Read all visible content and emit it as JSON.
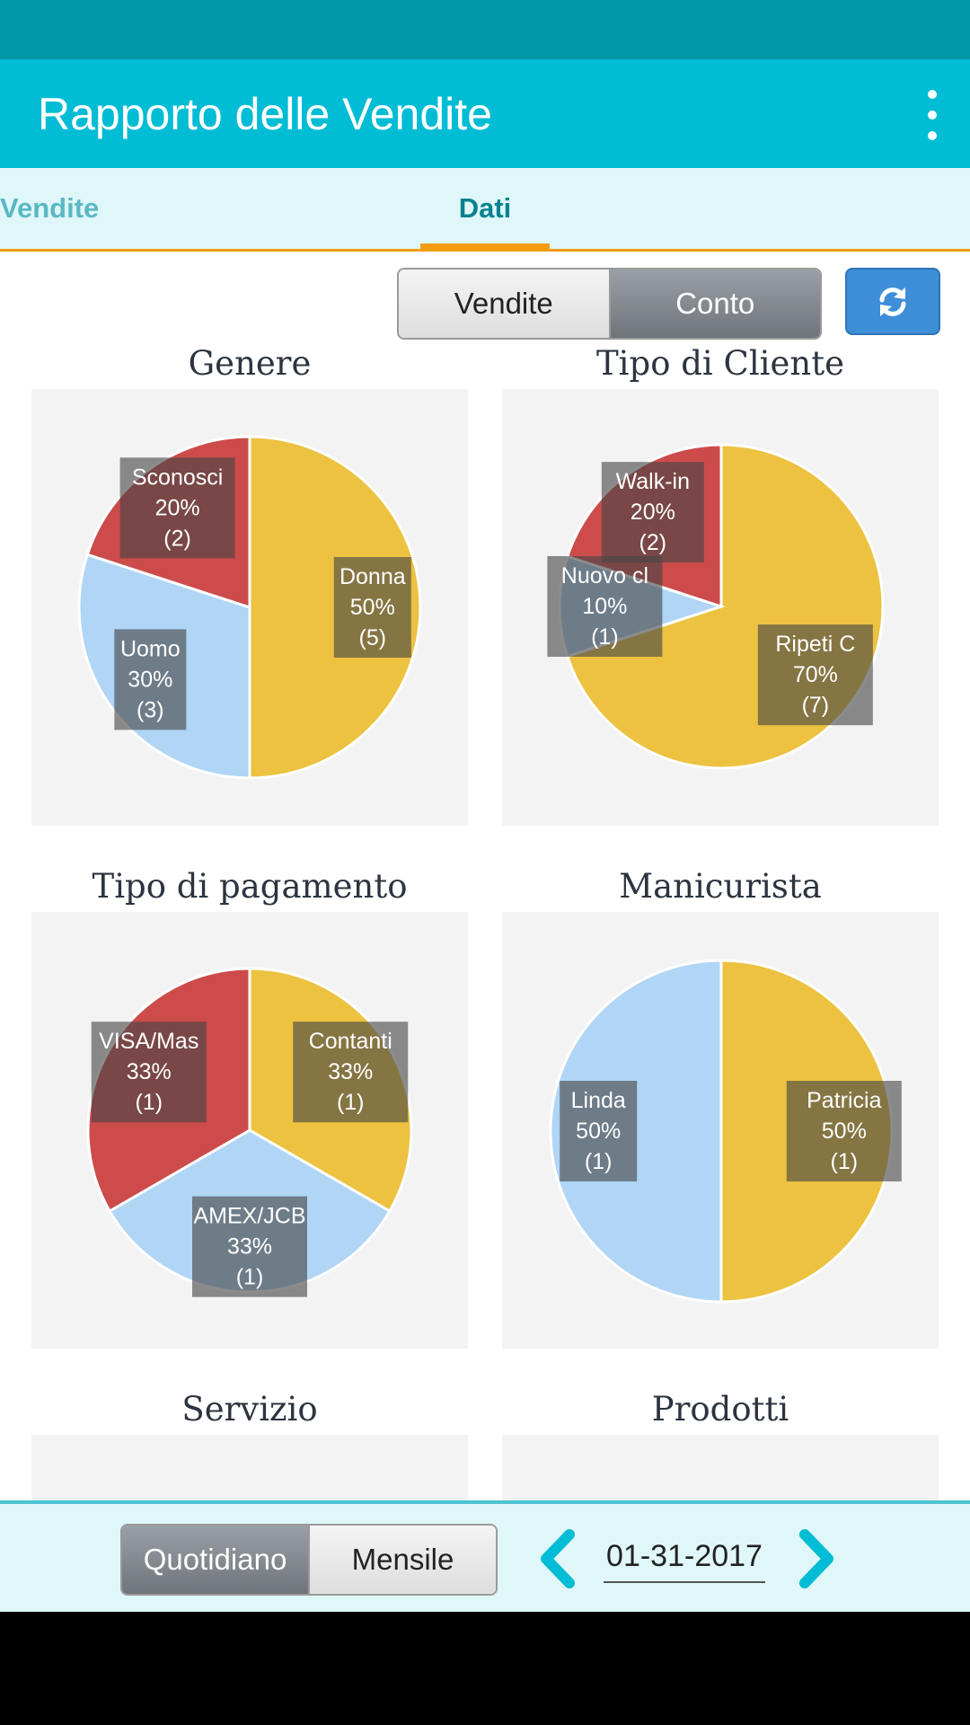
{
  "app": {
    "title": "Rapporto delle Vendite"
  },
  "tabs": [
    {
      "label": "Vendite",
      "active": false
    },
    {
      "label": "Dati",
      "active": true
    }
  ],
  "metric_toggle": {
    "options": [
      "Vendite",
      "Conto"
    ],
    "selected": "Conto"
  },
  "icons": {
    "refresh": "refresh-icon",
    "menu": "overflow-menu-icon",
    "prev": "chevron-left-icon",
    "next": "chevron-right-icon"
  },
  "colors": {
    "accent": "#00bcd4",
    "tab_indicator": "#f39c12",
    "yellow": "#ecc240",
    "blue": "#b0d5f5",
    "red": "#cd4b4b",
    "refresh_button": "#3f8fd8"
  },
  "charts": [
    {
      "title": "Genere",
      "slices": [
        {
          "label": "Donna",
          "percent": "50%",
          "count": "(5)",
          "value": 5,
          "color": "#ecc240"
        },
        {
          "label": "Uomo",
          "percent": "30%",
          "count": "(3)",
          "value": 3,
          "color": "#b0d5f5"
        },
        {
          "label": "Sconosci",
          "percent": "20%",
          "count": "(2)",
          "value": 2,
          "color": "#cd4b4b"
        }
      ]
    },
    {
      "title": "Tipo di Cliente",
      "slices": [
        {
          "label": "Ripeti C",
          "percent": "70%",
          "count": "(7)",
          "value": 7,
          "color": "#ecc240"
        },
        {
          "label": "Nuovo cl",
          "percent": "10%",
          "count": "(1)",
          "value": 1,
          "color": "#b0d5f5"
        },
        {
          "label": "Walk-in",
          "percent": "20%",
          "count": "(2)",
          "value": 2,
          "color": "#cd4b4b"
        }
      ]
    },
    {
      "title": "Tipo di pagamento",
      "slices": [
        {
          "label": "Contanti",
          "percent": "33%",
          "count": "(1)",
          "value": 1,
          "color": "#ecc240"
        },
        {
          "label": "AMEX/JCB",
          "percent": "33%",
          "count": "(1)",
          "value": 1,
          "color": "#b0d5f5"
        },
        {
          "label": "VISA/Mas",
          "percent": "33%",
          "count": "(1)",
          "value": 1,
          "color": "#cd4b4b"
        }
      ]
    },
    {
      "title": "Manicurista",
      "slices": [
        {
          "label": "Patricia",
          "percent": "50%",
          "count": "(1)",
          "value": 1,
          "color": "#ecc240"
        },
        {
          "label": "Linda",
          "percent": "50%",
          "count": "(1)",
          "value": 1,
          "color": "#b0d5f5"
        }
      ]
    },
    {
      "title": "Servizio",
      "slices": []
    },
    {
      "title": "Prodotti",
      "slices": []
    }
  ],
  "period_toggle": {
    "options": [
      "Quotidiano",
      "Mensile"
    ],
    "selected": "Quotidiano"
  },
  "date": {
    "value": "01-31-2017"
  }
}
